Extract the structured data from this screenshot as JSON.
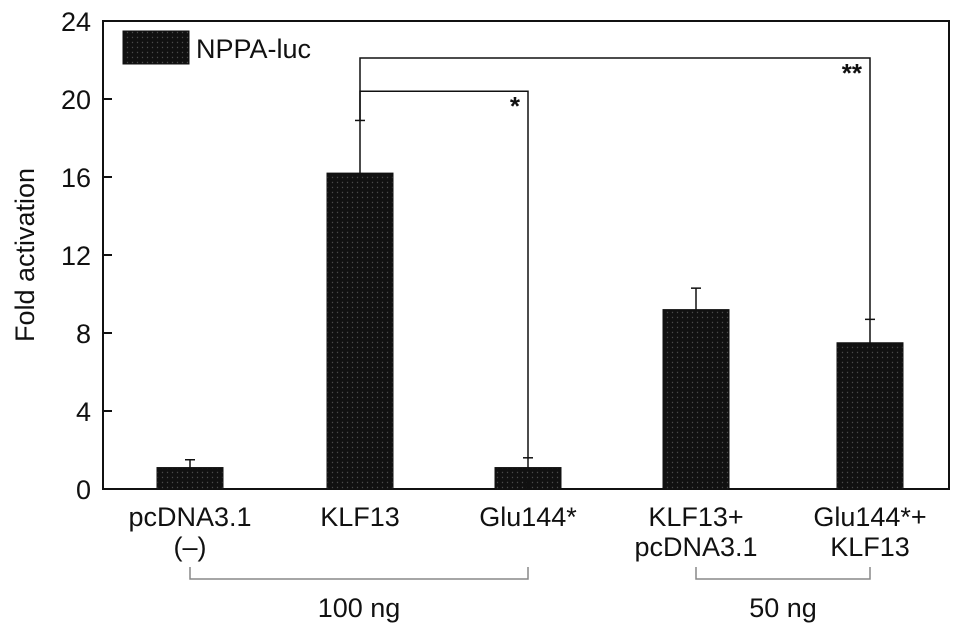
{
  "chart_data": {
    "type": "bar",
    "categories": [
      [
        "pcDNA3.1",
        "(–)"
      ],
      [
        "KLF13"
      ],
      [
        "Glu144*"
      ],
      [
        "KLF13+",
        "pcDNA3.1"
      ],
      [
        "Glu144*+",
        "KLF13"
      ]
    ],
    "series": [
      {
        "name": "NPPA-luc",
        "values": [
          1.1,
          16.2,
          1.1,
          9.2,
          7.5
        ],
        "errors": [
          0.4,
          2.7,
          0.5,
          1.1,
          1.2
        ]
      }
    ],
    "ylabel": "Fold activation",
    "xlabel": "",
    "ylim": [
      0,
      24
    ],
    "yticks": [
      0,
      4,
      8,
      12,
      16,
      20,
      24
    ],
    "legend_position": "top-left",
    "bar_color": "#111111",
    "groups": [
      {
        "label": "100 ng",
        "from": 0,
        "to": 2
      },
      {
        "label": "50 ng",
        "from": 3,
        "to": 4
      }
    ],
    "significance": [
      {
        "from": 1,
        "to": 2,
        "label": "*",
        "y": 20.4
      },
      {
        "from": 1,
        "to": 4,
        "label": "**",
        "y": 22.1
      }
    ]
  }
}
